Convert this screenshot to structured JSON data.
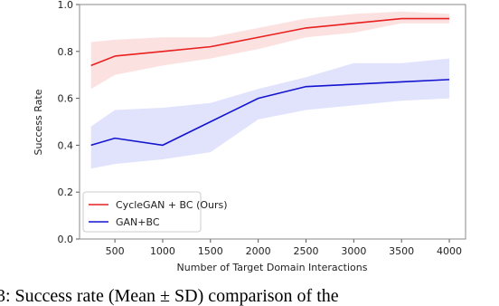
{
  "chart_data": {
    "type": "line",
    "xlabel": "Number of Target Domain Interactions",
    "ylabel": "Success Rate",
    "x": [
      250,
      500,
      1000,
      1500,
      2000,
      2500,
      3000,
      3500,
      4000
    ],
    "series": [
      {
        "name": "CycleGAN + BC (Ours)",
        "color": "#e8201f",
        "band_color": "#fbd9da",
        "values": [
          0.74,
          0.78,
          0.8,
          0.82,
          0.86,
          0.9,
          0.92,
          0.94,
          0.94
        ],
        "upper": [
          0.84,
          0.85,
          0.86,
          0.86,
          0.9,
          0.94,
          0.96,
          0.97,
          0.96
        ],
        "lower": [
          0.64,
          0.7,
          0.74,
          0.77,
          0.81,
          0.86,
          0.88,
          0.92,
          0.92
        ]
      },
      {
        "name": "GAN+BC",
        "color": "#1414d0",
        "band_color": "#dadcfb",
        "values": [
          0.4,
          0.43,
          0.4,
          0.5,
          0.6,
          0.65,
          0.66,
          0.67,
          0.68
        ],
        "upper": [
          0.48,
          0.55,
          0.56,
          0.58,
          0.64,
          0.69,
          0.75,
          0.75,
          0.77
        ],
        "lower": [
          0.3,
          0.32,
          0.34,
          0.37,
          0.51,
          0.55,
          0.57,
          0.59,
          0.6
        ]
      }
    ],
    "xlim": [
      130,
      4170
    ],
    "xticks": [
      500,
      1000,
      1500,
      2000,
      2500,
      3000,
      3500,
      4000
    ],
    "ylim": [
      0,
      1
    ],
    "yticks": [
      {
        "value": 0,
        "label": "0.0"
      },
      {
        "value": 0.2,
        "label": "0.2"
      },
      {
        "value": 0.4,
        "label": "0.4"
      },
      {
        "value": 0.6,
        "label": "0.6"
      },
      {
        "value": 0.8,
        "label": "0.8"
      },
      {
        "value": 1,
        "label": "1.0"
      }
    ],
    "legend": "lower left"
  },
  "caption": "3: Success rate (Mean ± SD) comparison of the"
}
